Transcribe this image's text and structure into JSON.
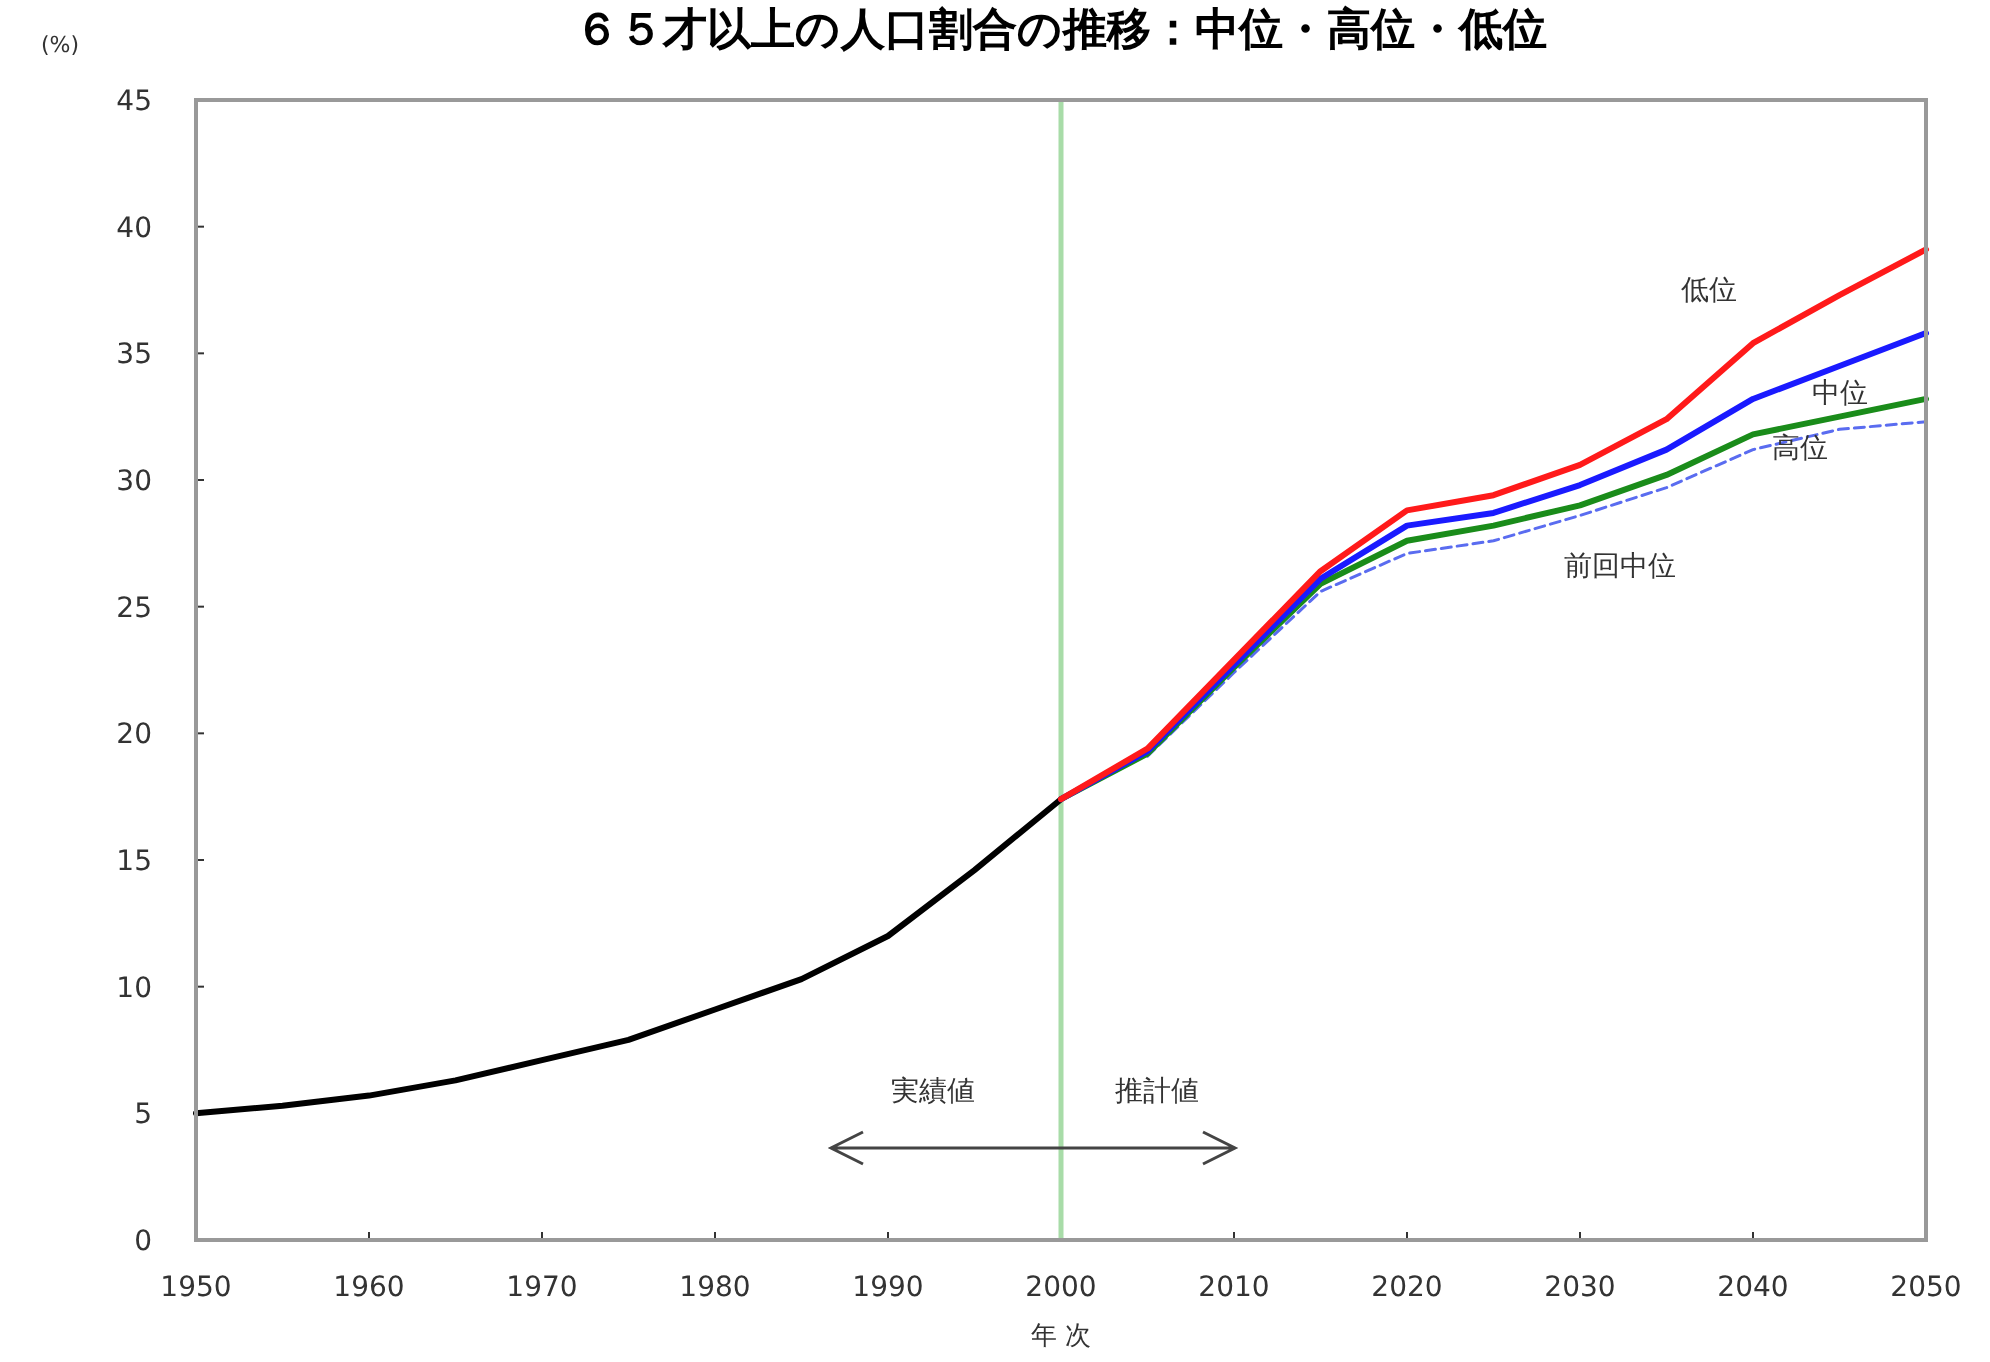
{
  "chart_data": {
    "type": "line",
    "title": "６５才以上の人口割合の推移：中位・高位・低位",
    "ylabel": "(%)",
    "xlabel": "年 次",
    "xlim": [
      1950,
      2050
    ],
    "xticks": [
      1950,
      1960,
      1970,
      1980,
      1990,
      2000,
      2010,
      2020,
      2030,
      2040,
      2050
    ],
    "ylim": [
      0,
      45
    ],
    "yticks": [
      0,
      5,
      10,
      15,
      20,
      25,
      30,
      35,
      40,
      45
    ],
    "grid": false,
    "series": [
      {
        "color": "#000000",
        "x": [
          1950,
          1955,
          1960,
          1965,
          1970,
          1975,
          1980,
          1985,
          1990,
          1995,
          2000
        ],
        "values": [
          5.0,
          5.3,
          5.7,
          6.3,
          7.1,
          7.9,
          9.1,
          10.3,
          12.0,
          14.6,
          17.4
        ]
      },
      {
        "name": "前回中位",
        "color": "#5a6cf0",
        "line_style": "dashed",
        "x": [
          2005,
          2010,
          2015,
          2020,
          2025,
          2030,
          2035,
          2040,
          2045,
          2050
        ],
        "values": [
          19.1,
          22.4,
          25.6,
          27.1,
          27.6,
          28.6,
          29.7,
          31.2,
          32.0,
          32.3
        ]
      },
      {
        "name": "高位",
        "color": "#1a8c1a",
        "x": [
          2000,
          2005,
          2010,
          2015,
          2020,
          2025,
          2030,
          2035,
          2040,
          2045,
          2050
        ],
        "values": [
          17.4,
          19.2,
          22.6,
          25.9,
          27.6,
          28.2,
          29.0,
          30.2,
          31.8,
          32.5,
          33.2
        ]
      },
      {
        "name": "中位",
        "color": "#1a1aff",
        "x": [
          2000,
          2005,
          2010,
          2015,
          2020,
          2025,
          2030,
          2035,
          2040,
          2045,
          2050
        ],
        "values": [
          17.4,
          19.3,
          22.7,
          26.1,
          28.2,
          28.7,
          29.8,
          31.2,
          33.2,
          34.5,
          35.8
        ]
      },
      {
        "name": "低位",
        "color": "#ff1a1a",
        "x": [
          2000,
          2005,
          2010,
          2015,
          2020,
          2025,
          2030,
          2035,
          2040,
          2045,
          2050
        ],
        "values": [
          17.4,
          19.4,
          22.9,
          26.4,
          28.8,
          29.4,
          30.6,
          32.4,
          35.4,
          37.3,
          39.1
        ]
      }
    ],
    "ref_lines": [
      {
        "axis": "x",
        "value": 2000,
        "color": "#a8dca8"
      }
    ],
    "annotations": [
      "実績値",
      "推計値"
    ]
  }
}
